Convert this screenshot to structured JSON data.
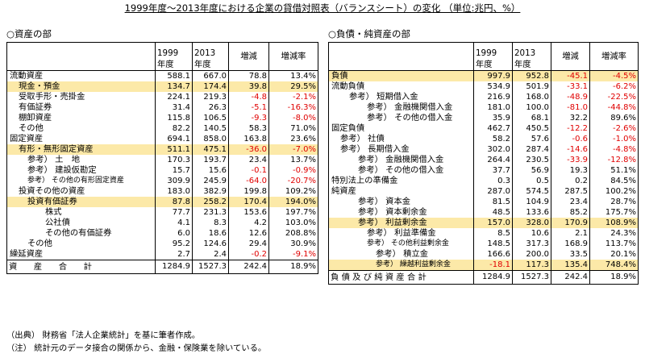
{
  "title": "1999年度～2013年度における企業の貸借対照表（バランスシート）の変化 （単位:兆円、%）",
  "assets": {
    "section": "○資産の部",
    "headers": [
      "",
      "1999\n年度",
      "2013\n年度",
      "増減",
      "増減率"
    ],
    "rows": [
      {
        "label": "流動資産",
        "indent": 0,
        "v1999": "588.1",
        "v2013": "667.0",
        "diff": "78.8",
        "rate": "13.4%",
        "hl": false
      },
      {
        "label": "現金・預金",
        "indent": 1,
        "v1999": "134.7",
        "v2013": "174.4",
        "diff": "39.8",
        "rate": "29.5%",
        "hl": true
      },
      {
        "label": "受取手形・売掛金",
        "indent": 1,
        "v1999": "224.1",
        "v2013": "219.3",
        "diff": "-4.8",
        "rate": "-2.1%",
        "hl": false
      },
      {
        "label": "有価証券",
        "indent": 1,
        "v1999": "31.4",
        "v2013": "26.3",
        "diff": "-5.1",
        "rate": "-16.3%",
        "hl": false
      },
      {
        "label": "棚卸資産",
        "indent": 1,
        "v1999": "115.8",
        "v2013": "106.5",
        "diff": "-9.3",
        "rate": "-8.0%",
        "hl": false
      },
      {
        "label": "その他",
        "indent": 1,
        "v1999": "82.2",
        "v2013": "140.5",
        "diff": "58.3",
        "rate": "71.0%",
        "hl": false
      },
      {
        "label": "固定資産",
        "indent": 0,
        "v1999": "694.1",
        "v2013": "858.0",
        "diff": "163.8",
        "rate": "23.6%",
        "hl": false
      },
      {
        "label": "有形・無形固定資産",
        "indent": 1,
        "v1999": "511.1",
        "v2013": "475.1",
        "diff": "-36.0",
        "rate": "-7.0%",
        "hl": true
      },
      {
        "label": "参考） 土　地",
        "indent": 2,
        "v1999": "170.3",
        "v2013": "193.7",
        "diff": "23.4",
        "rate": "13.7%",
        "hl": false
      },
      {
        "label": "参考） 建設仮勘定",
        "indent": 2,
        "v1999": "15.7",
        "v2013": "15.6",
        "diff": "-0.1",
        "rate": "-0.9%",
        "hl": false
      },
      {
        "label": "参考） その他の有形固定資産",
        "indent": 2,
        "v1999": "309.9",
        "v2013": "245.9",
        "diff": "-64.0",
        "rate": "-20.7%",
        "hl": false,
        "small": true
      },
      {
        "label": "投資その他の資産",
        "indent": 1,
        "v1999": "183.0",
        "v2013": "382.9",
        "diff": "199.8",
        "rate": "109.2%",
        "hl": false
      },
      {
        "label": "投資有価証券",
        "indent": 2,
        "v1999": "87.8",
        "v2013": "258.2",
        "diff": "170.4",
        "rate": "194.0%",
        "hl": true
      },
      {
        "label": "株式",
        "indent": 4,
        "v1999": "77.7",
        "v2013": "231.3",
        "diff": "153.6",
        "rate": "197.7%",
        "hl": false
      },
      {
        "label": "公社債",
        "indent": 4,
        "v1999": "4.1",
        "v2013": "8.3",
        "diff": "4.2",
        "rate": "103.0%",
        "hl": false
      },
      {
        "label": "その他の有価証券",
        "indent": 4,
        "v1999": "6.0",
        "v2013": "18.6",
        "diff": "12.6",
        "rate": "208.8%",
        "hl": false
      },
      {
        "label": "その他",
        "indent": 2,
        "v1999": "95.2",
        "v2013": "124.6",
        "diff": "29.4",
        "rate": "30.9%",
        "hl": false
      },
      {
        "label": "繰延資産",
        "indent": 0,
        "v1999": "2.7",
        "v2013": "2.4",
        "diff": "-0.2",
        "rate": "-9.1%",
        "hl": false
      }
    ],
    "total": {
      "label": "資　　産　　合　　計",
      "v1999": "1284.9",
      "v2013": "1527.3",
      "diff": "242.4",
      "rate": "18.9%"
    }
  },
  "liabilities": {
    "section": "○負債・純資産の部",
    "headers": [
      "",
      "1999\n年度",
      "2013\n年度",
      "増減",
      "増減率"
    ],
    "rows": [
      {
        "label": "負債",
        "indent": 0,
        "v1999": "997.9",
        "v2013": "952.8",
        "diff": "-45.1",
        "rate": "-4.5%",
        "hl": true
      },
      {
        "label": "流動負債",
        "indent": 0,
        "v1999": "534.9",
        "v2013": "501.9",
        "diff": "-33.1",
        "rate": "-6.2%",
        "hl": false
      },
      {
        "label": "参考） 短期借入金",
        "indent": 2,
        "v1999": "216.9",
        "v2013": "168.0",
        "diff": "-48.9",
        "rate": "-22.5%",
        "hl": false
      },
      {
        "label": "参考） 金融機関借入金",
        "indent": 4,
        "v1999": "181.0",
        "v2013": "100.0",
        "diff": "-81.0",
        "rate": "-44.8%",
        "hl": false
      },
      {
        "label": "参考） その他の借入金",
        "indent": 4,
        "v1999": "35.9",
        "v2013": "68.1",
        "diff": "32.2",
        "rate": "89.6%",
        "hl": false
      },
      {
        "label": "固定負債",
        "indent": 0,
        "v1999": "462.7",
        "v2013": "450.5",
        "diff": "-12.2",
        "rate": "-2.6%",
        "hl": false
      },
      {
        "label": "参考） 社債",
        "indent": 1,
        "v1999": "58.2",
        "v2013": "57.6",
        "diff": "-0.6",
        "rate": "-1.0%",
        "hl": false
      },
      {
        "label": "参考） 長期借入金",
        "indent": 1,
        "v1999": "302.0",
        "v2013": "287.4",
        "diff": "-14.6",
        "rate": "-4.8%",
        "hl": false
      },
      {
        "label": "参考） 金融機関借入金",
        "indent": 3,
        "v1999": "264.4",
        "v2013": "230.5",
        "diff": "-33.9",
        "rate": "-12.8%",
        "hl": false
      },
      {
        "label": "参考） その他の借入金",
        "indent": 3,
        "v1999": "37.7",
        "v2013": "56.9",
        "diff": "19.3",
        "rate": "51.1%",
        "hl": false
      },
      {
        "label": "特別法上の準備金",
        "indent": 0,
        "v1999": "0.3",
        "v2013": "0.5",
        "diff": "0.2",
        "rate": "84.5%",
        "hl": false
      },
      {
        "label": "純資産",
        "indent": 0,
        "v1999": "287.0",
        "v2013": "574.5",
        "diff": "287.5",
        "rate": "100.2%",
        "hl": false
      },
      {
        "label": "参考） 資本金",
        "indent": 3,
        "v1999": "81.5",
        "v2013": "104.9",
        "diff": "23.4",
        "rate": "28.7%",
        "hl": false
      },
      {
        "label": "参考） 資本剰余金",
        "indent": 3,
        "v1999": "48.5",
        "v2013": "133.6",
        "diff": "85.2",
        "rate": "175.7%",
        "hl": false
      },
      {
        "label": "参考） 利益剰余金",
        "indent": 3,
        "v1999": "157.0",
        "v2013": "328.0",
        "diff": "170.9",
        "rate": "108.9%",
        "hl": true
      },
      {
        "label": "参考） 利益準備金",
        "indent": 4,
        "v1999": "8.5",
        "v2013": "10.6",
        "diff": "2.1",
        "rate": "24.3%",
        "hl": false
      },
      {
        "label": "参考） その他利益剰余金",
        "indent": 4,
        "v1999": "148.5",
        "v2013": "317.3",
        "diff": "168.9",
        "rate": "113.7%",
        "hl": false,
        "small": true
      },
      {
        "label": "参考） 積立金",
        "indent": 5,
        "v1999": "166.6",
        "v2013": "200.0",
        "diff": "33.5",
        "rate": "20.1%",
        "hl": false
      },
      {
        "label": "参考） 繰越利益剰余金",
        "indent": 5,
        "v1999": "-18.1",
        "v2013": "117.3",
        "diff": "135.4",
        "rate": "748.4%",
        "hl": true,
        "small": true
      }
    ],
    "total": {
      "label": "負 債 及 び 純 資 産 合 計",
      "v1999": "1284.9",
      "v2013": "1527.3",
      "diff": "242.4",
      "rate": "18.9%"
    }
  },
  "notes": [
    "（出典） 財務省「法人企業統計」を基に筆者作成。",
    "（注） 統計元のデータ接合の関係から、金融・保険業を除いている。"
  ],
  "colors": {
    "highlight": "#fce9a8",
    "negative": "#e00000"
  }
}
